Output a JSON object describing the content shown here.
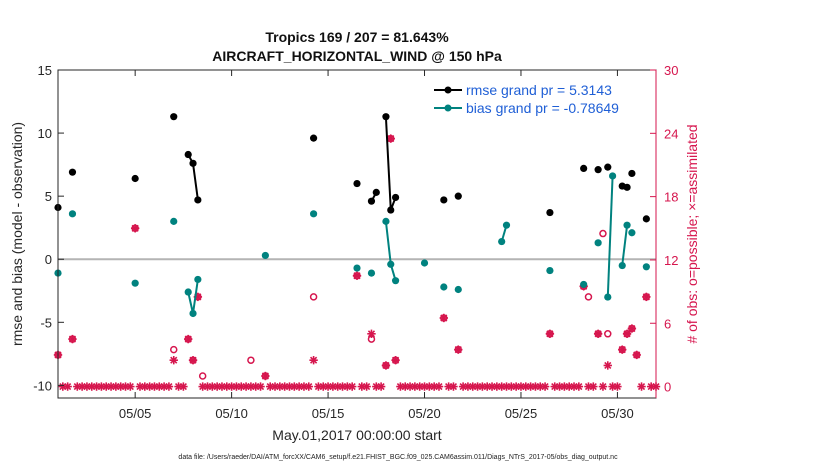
{
  "chart_data": {
    "type": "line",
    "title": "Tropics 169 / 207 = 81.643%",
    "subtitle": "AIRCRAFT_HORIZONTAL_WIND @ 150 hPa",
    "xlabel": "May.01,2017 00:00:00 start",
    "ylabel": "rmse and bias (model - observation)",
    "y2label": "# of obs: o=possible; ×=assimilated",
    "footnote": "data file: /Users/raeder/DAI/ATM_forcXX/CAM6_setup/f.e21.FHIST_BGC.f09_025.CAM6assim.011/Diags_NTrS_2017-05/obs_diag_output.nc",
    "xlim": [
      1,
      32
    ],
    "ylim": [
      -11,
      15
    ],
    "y2lim": [
      -1.0833,
      30
    ],
    "x_ticks": [
      5,
      10,
      15,
      20,
      25,
      30
    ],
    "x_tick_labels": [
      "05/05",
      "05/10",
      "05/15",
      "05/20",
      "05/25",
      "05/30"
    ],
    "y_ticks": [
      -10,
      -5,
      0,
      5,
      10,
      15
    ],
    "y_tick_labels": [
      "-10",
      "-5",
      "0",
      "5",
      "10",
      "15"
    ],
    "y2_ticks": [
      0,
      6,
      12,
      18,
      24,
      30
    ],
    "y2_tick_labels": [
      "0",
      "6",
      "12",
      "18",
      "24",
      "30"
    ],
    "zero_line": 0,
    "legend": {
      "position": "top-right",
      "entries": [
        "rmse grand pr = 5.3143",
        "bias grand pr = -0.78649"
      ]
    },
    "series": [
      {
        "name": "rmse",
        "color": "#000000",
        "segments": [
          [
            [
              1.0,
              4.1
            ]
          ],
          [
            [
              1.75,
              6.9
            ]
          ],
          [
            [
              5.0,
              6.4
            ]
          ],
          [
            [
              7.0,
              11.3
            ]
          ],
          [
            [
              7.75,
              8.3
            ],
            [
              8.0,
              7.6
            ],
            [
              8.25,
              4.7
            ]
          ],
          [
            [
              14.25,
              9.6
            ]
          ],
          [
            [
              16.5,
              6.0
            ]
          ],
          [
            [
              17.25,
              4.6
            ],
            [
              17.5,
              5.3
            ]
          ],
          [
            [
              18.0,
              11.3
            ],
            [
              18.25,
              3.9
            ],
            [
              18.5,
              4.9
            ]
          ],
          [
            [
              21.0,
              4.7
            ]
          ],
          [
            [
              21.75,
              5.0
            ]
          ],
          [
            [
              26.5,
              3.7
            ]
          ],
          [
            [
              28.25,
              7.2
            ]
          ],
          [
            [
              29.0,
              7.1
            ]
          ],
          [
            [
              29.5,
              7.3
            ]
          ],
          [
            [
              30.25,
              5.8
            ],
            [
              30.5,
              5.7
            ]
          ],
          [
            [
              30.75,
              6.8
            ]
          ],
          [
            [
              31.5,
              3.2
            ]
          ]
        ]
      },
      {
        "name": "bias",
        "color": "#00827f",
        "segments": [
          [
            [
              1.0,
              -1.1
            ]
          ],
          [
            [
              1.75,
              3.6
            ]
          ],
          [
            [
              5.0,
              -1.9
            ]
          ],
          [
            [
              7.0,
              3.0
            ]
          ],
          [
            [
              7.75,
              -2.6
            ],
            [
              8.0,
              -4.3
            ],
            [
              8.25,
              -1.6
            ]
          ],
          [
            [
              11.75,
              0.3
            ]
          ],
          [
            [
              14.25,
              3.6
            ]
          ],
          [
            [
              16.5,
              -0.7
            ]
          ],
          [
            [
              17.25,
              -1.1
            ]
          ],
          [
            [
              18.0,
              3.0
            ],
            [
              18.25,
              -0.4
            ],
            [
              18.5,
              -1.7
            ]
          ],
          [
            [
              20.0,
              -0.3
            ]
          ],
          [
            [
              21.0,
              -2.2
            ]
          ],
          [
            [
              21.75,
              -2.4
            ]
          ],
          [
            [
              24.0,
              1.4
            ],
            [
              24.25,
              2.7
            ]
          ],
          [
            [
              26.5,
              -0.9
            ]
          ],
          [
            [
              28.25,
              -2.0
            ]
          ],
          [
            [
              29.0,
              1.3
            ]
          ],
          [
            [
              29.5,
              -3.0
            ],
            [
              29.75,
              6.6
            ]
          ],
          [
            [
              30.25,
              -0.5
            ],
            [
              30.5,
              2.7
            ]
          ],
          [
            [
              30.75,
              2.1
            ]
          ],
          [
            [
              31.5,
              -0.6
            ]
          ]
        ]
      }
    ],
    "possible": [
      [
        1.0,
        3
      ],
      [
        1.75,
        4.5
      ],
      [
        5.0,
        15
      ],
      [
        7.0,
        3.5
      ],
      [
        7.75,
        4.5
      ],
      [
        8.0,
        2.5
      ],
      [
        8.25,
        8.5
      ],
      [
        8.5,
        1
      ],
      [
        11.0,
        2.5
      ],
      [
        11.75,
        1
      ],
      [
        14.25,
        8.5
      ],
      [
        16.5,
        10.5
      ],
      [
        17.25,
        4.5
      ],
      [
        18.0,
        2
      ],
      [
        18.25,
        23.5
      ],
      [
        18.5,
        2.5
      ],
      [
        21.0,
        6.5
      ],
      [
        21.75,
        3.5
      ],
      [
        26.5,
        5
      ],
      [
        28.25,
        9.5
      ],
      [
        28.5,
        8.5
      ],
      [
        29.0,
        5
      ],
      [
        29.25,
        14.5
      ],
      [
        29.5,
        5
      ],
      [
        30.25,
        3.5
      ],
      [
        30.5,
        5
      ],
      [
        30.75,
        5.5
      ],
      [
        31.0,
        3
      ],
      [
        31.5,
        8.5
      ]
    ],
    "assimilated": [
      [
        1.0,
        3
      ],
      [
        1.75,
        4.5
      ],
      [
        5.0,
        15
      ],
      [
        7.0,
        2.5
      ],
      [
        7.75,
        4.5
      ],
      [
        8.0,
        2.5
      ],
      [
        8.25,
        8.5
      ],
      [
        11.75,
        1
      ],
      [
        14.25,
        2.5
      ],
      [
        16.5,
        10.5
      ],
      [
        17.25,
        5
      ],
      [
        18.0,
        2
      ],
      [
        18.25,
        23.5
      ],
      [
        18.5,
        2.5
      ],
      [
        21.0,
        6.5
      ],
      [
        21.75,
        3.5
      ],
      [
        26.5,
        5
      ],
      [
        28.25,
        9.5
      ],
      [
        29.0,
        5
      ],
      [
        29.5,
        2
      ],
      [
        30.25,
        3.5
      ],
      [
        30.5,
        5
      ],
      [
        30.75,
        5.5
      ],
      [
        31.0,
        3
      ],
      [
        31.5,
        8.5
      ]
    ],
    "zero_count_days": {
      "start": 1,
      "end": 32,
      "step": 0.25
    }
  }
}
